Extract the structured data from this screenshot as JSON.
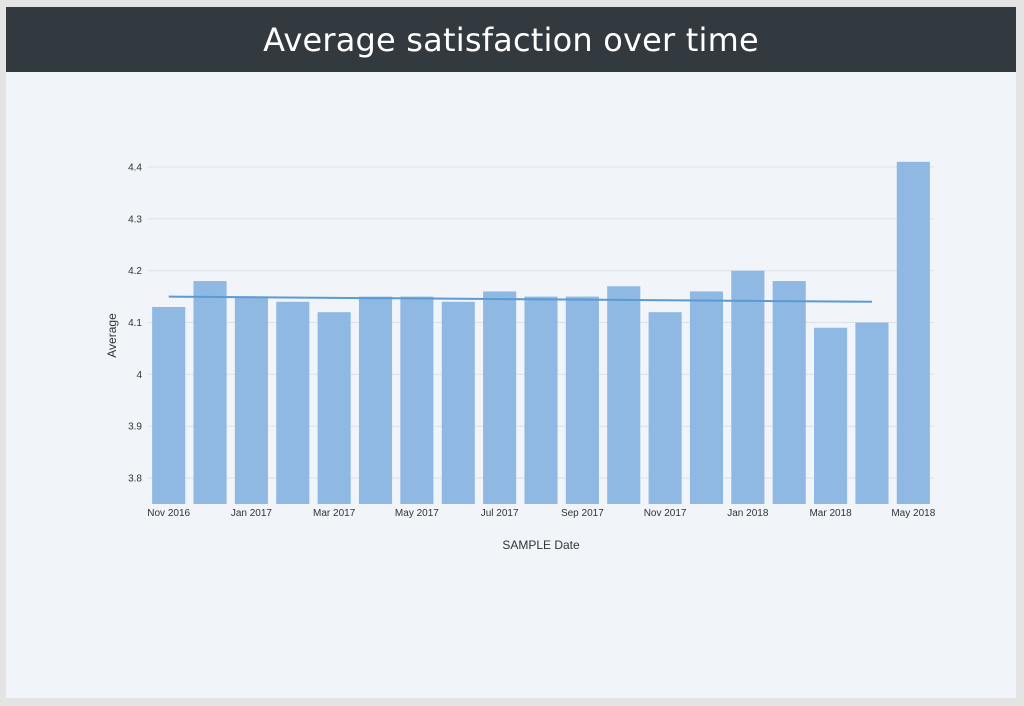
{
  "header": {
    "title": "Average satisfaction over time"
  },
  "colors": {
    "bar": "#8fb8e3",
    "trend": "#5b9bd5",
    "header_bg": "#32393f",
    "plot_bg": "#f1f4f9"
  },
  "chart_data": {
    "type": "bar",
    "categories": [
      "Nov 2016",
      "Dec 2016",
      "Jan 2017",
      "Feb 2017",
      "Mar 2017",
      "Apr 2017",
      "May 2017",
      "Jun 2017",
      "Jul 2017",
      "Aug 2017",
      "Sep 2017",
      "Oct 2017",
      "Nov 2017",
      "Dec 2017",
      "Jan 2018",
      "Feb 2018",
      "Mar 2018",
      "Apr 2018",
      "May 2018"
    ],
    "values": [
      4.13,
      4.18,
      4.15,
      4.14,
      4.12,
      4.15,
      4.15,
      4.14,
      4.16,
      4.15,
      4.15,
      4.17,
      4.12,
      4.16,
      4.2,
      4.18,
      4.09,
      4.1,
      4.41
    ],
    "trendline": {
      "start": {
        "x": "Nov 2016",
        "y": 4.15
      },
      "end": {
        "x": "Apr 2018",
        "y": 4.14
      }
    },
    "xticks": [
      "Nov 2016",
      "Jan 2017",
      "Mar 2017",
      "May 2017",
      "Jul 2017",
      "Sep 2017",
      "Nov 2017",
      "Jan 2018",
      "Mar 2018",
      "May 2018"
    ],
    "yticks": [
      "3.8",
      "3.9",
      "4",
      "4.1",
      "4.2",
      "4.3",
      "4.4"
    ],
    "ylim": [
      3.75,
      4.4
    ],
    "xlabel": "SAMPLE Date",
    "ylabel": "Average",
    "grid": true
  }
}
